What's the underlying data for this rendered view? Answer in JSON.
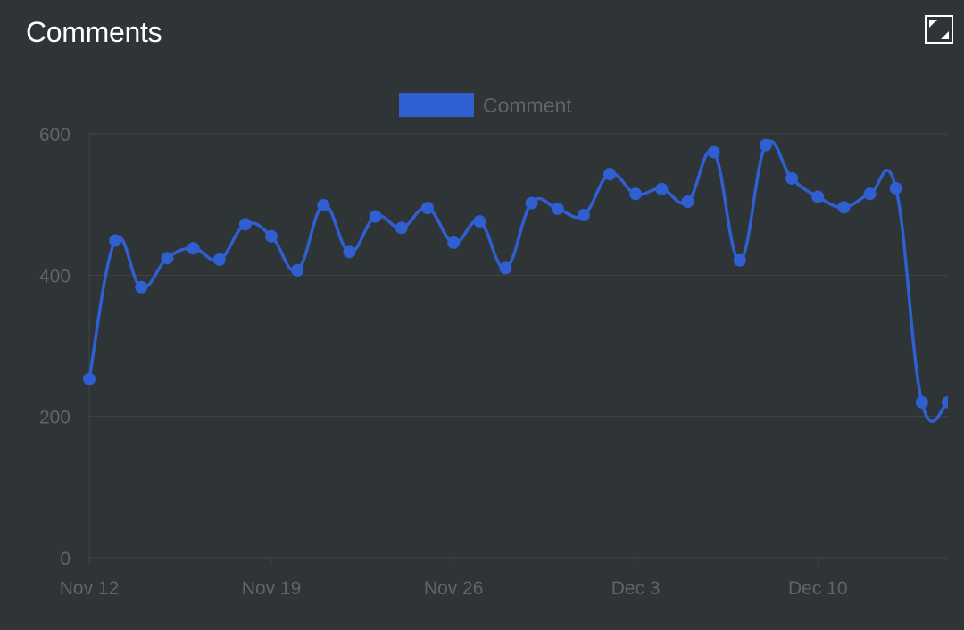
{
  "panel": {
    "title": "Comments",
    "expand_icon": "expand-icon"
  },
  "colors": {
    "background": "#2f3437",
    "series": "#2f5fd0",
    "grid": "#3f4447",
    "axis_text": "#5f6466"
  },
  "chart_data": {
    "type": "line",
    "title": "",
    "xlabel": "",
    "ylabel": "",
    "ylim": [
      0,
      600
    ],
    "yticks": [
      "0",
      "200",
      "400",
      "600"
    ],
    "xlim": [
      "2023-11-12",
      "2023-12-15"
    ],
    "xticks": [
      {
        "date": "2023-11-12",
        "label": "Nov 12"
      },
      {
        "date": "2023-11-19",
        "label": "Nov 19"
      },
      {
        "date": "2023-11-26",
        "label": "Nov 26"
      },
      {
        "date": "2023-12-03",
        "label": "Dec 3"
      },
      {
        "date": "2023-12-10",
        "label": "Dec 10"
      }
    ],
    "grid": true,
    "legend": "top-center",
    "x": [
      "2023-11-12",
      "2023-11-13",
      "2023-11-14",
      "2023-11-15",
      "2023-11-16",
      "2023-11-17",
      "2023-11-18",
      "2023-11-19",
      "2023-11-20",
      "2023-11-21",
      "2023-11-22",
      "2023-11-23",
      "2023-11-24",
      "2023-11-25",
      "2023-11-26",
      "2023-11-27",
      "2023-11-28",
      "2023-11-29",
      "2023-11-30",
      "2023-12-01",
      "2023-12-02",
      "2023-12-03",
      "2023-12-04",
      "2023-12-05",
      "2023-12-06",
      "2023-12-07",
      "2023-12-08",
      "2023-12-09",
      "2023-12-10",
      "2023-12-11",
      "2023-12-12",
      "2023-12-13",
      "2023-12-14",
      "2023-12-15"
    ],
    "series": [
      {
        "name": "Comment",
        "color": "#2f5fd0",
        "values": [
          253,
          449,
          383,
          424,
          438,
          422,
          472,
          455,
          407,
          499,
          433,
          483,
          467,
          495,
          446,
          476,
          410,
          502,
          494,
          485,
          543,
          515,
          522,
          504,
          574,
          421,
          584,
          537,
          511,
          496,
          515,
          523,
          220,
          220
        ]
      }
    ]
  }
}
